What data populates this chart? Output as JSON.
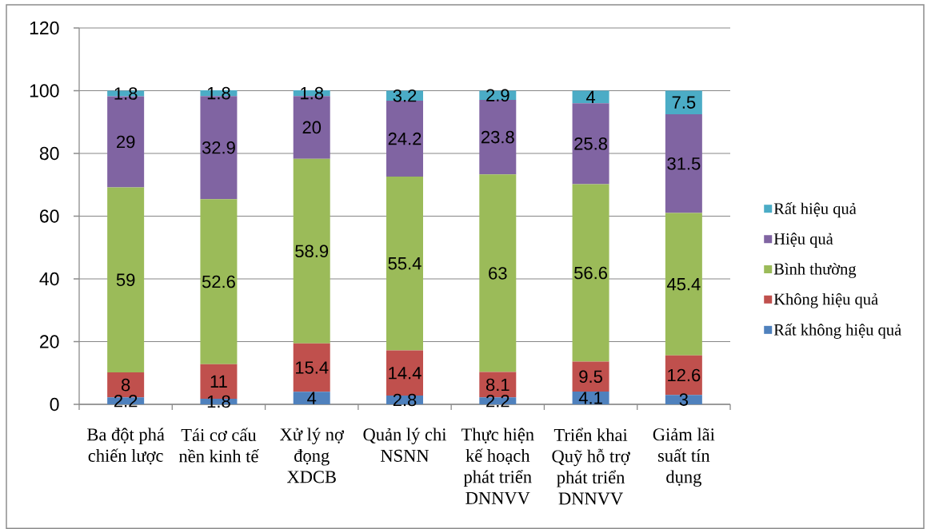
{
  "chart_data": {
    "type": "bar",
    "stacked": true,
    "categories": [
      "Ba đột phá chiến lược",
      "Tái cơ cấu nền kinh tế",
      "Xử lý nợ đọng XDCB",
      "Quản lý chi NSNN",
      "Thực hiện kế hoạch phát triển DNNVV",
      "Triển khai Quỹ hỗ trợ phát triển DNNVV",
      "Giảm lãi suất tín dụng"
    ],
    "series": [
      {
        "name": "Rất không hiệu quả",
        "color": "#4f81bd",
        "values": [
          2.2,
          1.8,
          4,
          2.8,
          2.2,
          4.1,
          3
        ]
      },
      {
        "name": "Không hiệu quả",
        "color": "#c0504d",
        "values": [
          8,
          11,
          15.4,
          14.4,
          8.1,
          9.5,
          12.6
        ]
      },
      {
        "name": "Bình thường",
        "color": "#9bbb59",
        "values": [
          59,
          52.6,
          58.9,
          55.4,
          63,
          56.6,
          45.4
        ]
      },
      {
        "name": "Hiệu quả",
        "color": "#8064a2",
        "values": [
          29,
          32.9,
          20,
          24.2,
          23.8,
          25.8,
          31.5
        ]
      },
      {
        "name": "Rất hiệu quả",
        "color": "#4bacc6",
        "values": [
          1.8,
          1.8,
          1.8,
          3.2,
          2.9,
          4,
          7.5
        ]
      }
    ],
    "ylim": [
      0,
      120
    ],
    "yticks": [
      0,
      20,
      40,
      60,
      80,
      100,
      120
    ],
    "grid": "y",
    "legend": "right",
    "data_labels": true
  }
}
